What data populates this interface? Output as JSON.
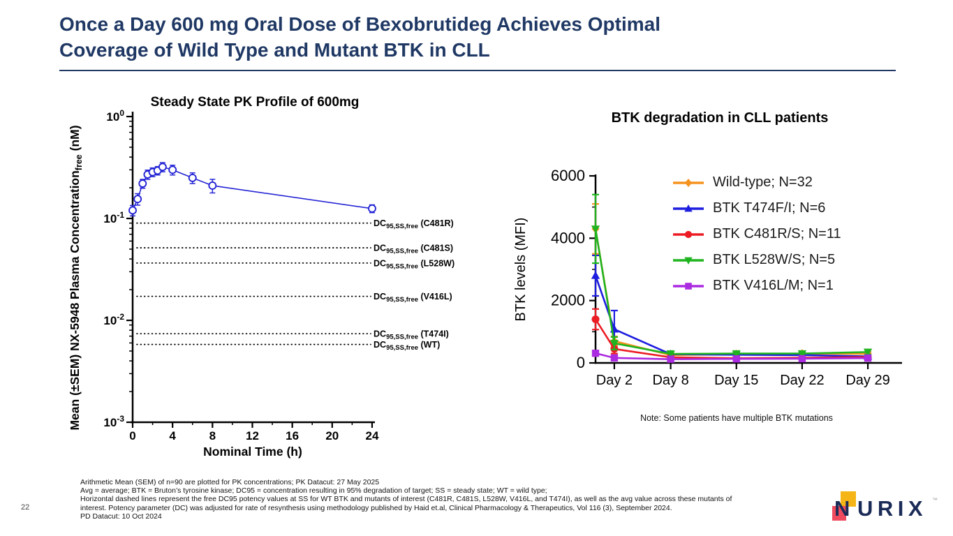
{
  "slide": {
    "title_lines": [
      "Once a Day 600 mg Oral Dose of Bexobrutideg Achieves Optimal",
      "Coverage of Wild Type and Mutant BTK in CLL"
    ],
    "title_color": "#1f3864",
    "page_number": "22"
  },
  "logo": {
    "n": "N",
    "rest": "URIX",
    "tm": "™",
    "navy": "#1b2b57",
    "yellow": "#f5b517",
    "pink": "#ef4a5e"
  },
  "footer": {
    "lines": [
      "Arithmetic Mean (SEM) of n=90 are plotted for PK concentrations; PK Datacut: 27 May 2025",
      "Avg = average; BTK = Bruton’s tyrosine kinase; DC95 = concentration resulting in 95% degradation of target; SS = steady state; WT = wild type;",
      "Horizontal dashed lines represent the free DC95 potency values at SS for WT BTK and mutants of interest (C481R, C481S, L528W, V416L, and T474I), as well as the avg value across these mutants of",
      "interest. Potency parameter (DC) was adjusted for rate of resynthesis using methodology published by Haid et.al, Clinical Pharmacology & Therapeutics, Vol 116 (3), September 2024.",
      "PD Datacut: 10 Oct 2024"
    ]
  },
  "chart_data": [
    {
      "type": "line",
      "title": "Steady State PK Profile of 600mg",
      "xlabel": "Nominal Time (h)",
      "ylabel_prefix": "Mean (±SEM) NX-5948 Plasma Concentration",
      "ylabel_sub": "free",
      "ylabel_suffix": " (nM)",
      "y_scale": "log10",
      "ylim_exponents": [
        0,
        -3
      ],
      "ytick_exponents": [
        "0",
        "-1",
        "-2",
        "-3"
      ],
      "xlim": [
        0,
        24
      ],
      "xticks": [
        0,
        4,
        8,
        12,
        16,
        20,
        24
      ],
      "xticks_minor": [
        2,
        6,
        10,
        14,
        18,
        22
      ],
      "line_color": "#2525d6",
      "x": [
        0,
        0.5,
        1,
        1.5,
        2,
        2.5,
        3,
        4,
        6,
        8,
        24
      ],
      "y": [
        0.12,
        0.155,
        0.22,
        0.27,
        0.285,
        0.295,
        0.32,
        0.3,
        0.25,
        0.21,
        0.125
      ],
      "sem": [
        0.014,
        0.02,
        0.022,
        0.028,
        0.028,
        0.028,
        0.033,
        0.033,
        0.03,
        0.032,
        0.011
      ],
      "dc_lines": [
        {
          "prefix": "DC",
          "sub": "95,SS,free",
          "mutant": "C481R",
          "value": 0.09
        },
        {
          "prefix": "DC",
          "sub": "95,SS,free",
          "mutant": "C481S",
          "value": 0.0515
        },
        {
          "prefix": "DC",
          "sub": "95,SS,free",
          "mutant": "L528W",
          "value": 0.0365
        },
        {
          "prefix": "DC",
          "sub": "95,SS,free",
          "mutant": "V416L",
          "value": 0.0172
        },
        {
          "prefix": "DC",
          "sub": "95,SS,free",
          "mutant": "T474I",
          "value": 0.0074
        },
        {
          "prefix": "DC",
          "sub": "95,SS,free",
          "mutant": "WT",
          "value": 0.0058
        }
      ]
    },
    {
      "type": "line",
      "title": "BTK degradation in CLL patients",
      "ylabel": "BTK levels (MFI)",
      "ylim": [
        0,
        6000
      ],
      "yticks": [
        0,
        2000,
        4000,
        6000
      ],
      "yticks_minor": [
        1000,
        3000,
        5000
      ],
      "x_days": [
        0,
        2,
        8,
        15,
        22,
        29
      ],
      "xtick_days": [
        2,
        8,
        15,
        22,
        29
      ],
      "xtick_labels": [
        "Day 2",
        "Day 8",
        "Day 15",
        "Day 22",
        "Day 29"
      ],
      "note": "Note: Some patients have multiple BTK mutations",
      "legend_position": "upper-right",
      "series": [
        {
          "name": "Wild-type; N=32",
          "color": "#f5921e",
          "marker": "diamond",
          "values": [
            4300,
            700,
            250,
            280,
            300,
            290
          ],
          "sem": [
            800,
            150,
            60,
            60,
            60,
            60
          ]
        },
        {
          "name": "BTK T474F/I; N=6",
          "color": "#1d1de0",
          "marker": "triangle-up",
          "values": [
            2800,
            1080,
            280,
            260,
            250,
            210
          ],
          "sem": [
            650,
            600,
            90,
            70,
            70,
            60
          ]
        },
        {
          "name": "BTK C481R/S; N=11",
          "color": "#ec1c24",
          "marker": "circle",
          "values": [
            1400,
            450,
            180,
            150,
            165,
            190
          ],
          "sem": [
            330,
            150,
            50,
            40,
            40,
            50
          ]
        },
        {
          "name": "BTK L528W/S; N=5",
          "color": "#1fb41f",
          "marker": "triangle-down",
          "values": [
            4300,
            630,
            290,
            300,
            300,
            350
          ],
          "sem": [
            1100,
            200,
            90,
            70,
            70,
            80
          ]
        },
        {
          "name": "BTK V416L/M; N=1",
          "color": "#ab2be0",
          "marker": "square",
          "values": [
            310,
            160,
            120,
            130,
            135,
            155
          ],
          "sem": [
            0,
            0,
            0,
            0,
            0,
            0
          ]
        }
      ]
    }
  ]
}
